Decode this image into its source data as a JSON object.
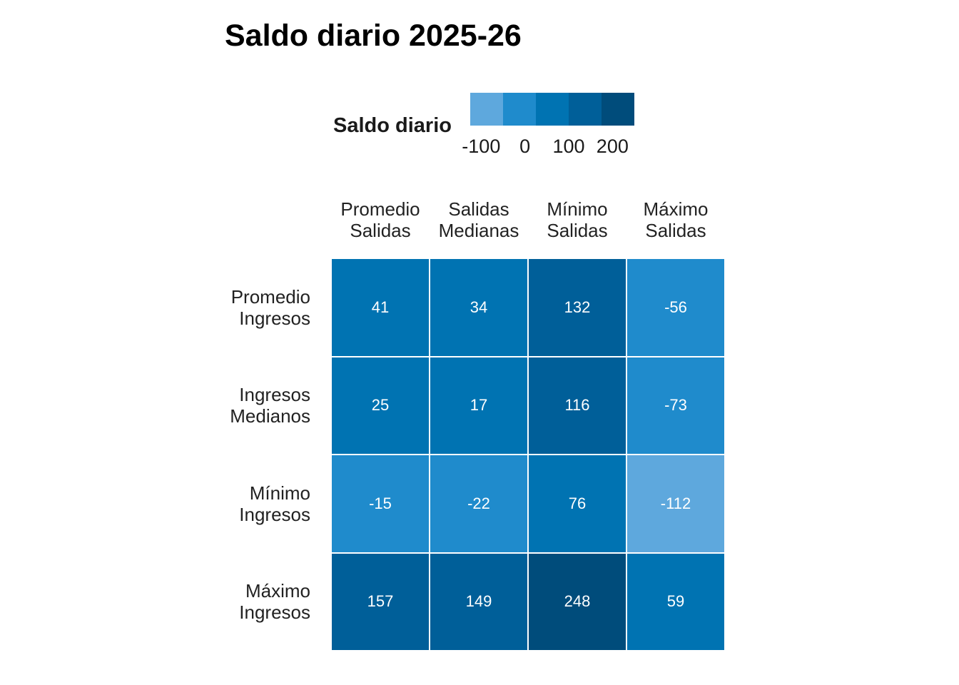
{
  "chart_data": {
    "type": "heatmap",
    "title": "Saldo diario 2025-26",
    "legend": {
      "title": "Saldo diario",
      "placement": "top",
      "ticks": [
        "-100",
        "0",
        "100",
        "200"
      ],
      "tick_values": [
        -100,
        0,
        100,
        200
      ],
      "range": [
        -125,
        250
      ],
      "colors": [
        "#5ea8dd",
        "#1f8bcc",
        "#0073b2",
        "#005f99",
        "#004c7b"
      ]
    },
    "columns": [
      [
        "Promedio",
        "Salidas"
      ],
      [
        "Salidas",
        "Medianas"
      ],
      [
        "Mínimo",
        "Salidas"
      ],
      [
        "Máximo",
        "Salidas"
      ]
    ],
    "rows": [
      [
        "Promedio",
        "Ingresos"
      ],
      [
        "Ingresos",
        "Medianos"
      ],
      [
        "Mínimo",
        "Ingresos"
      ],
      [
        "Máximo",
        "Ingresos"
      ]
    ],
    "values": [
      [
        41,
        34,
        132,
        -56
      ],
      [
        25,
        17,
        116,
        -73
      ],
      [
        -15,
        -22,
        76,
        -112
      ],
      [
        157,
        149,
        248,
        59
      ]
    ]
  }
}
